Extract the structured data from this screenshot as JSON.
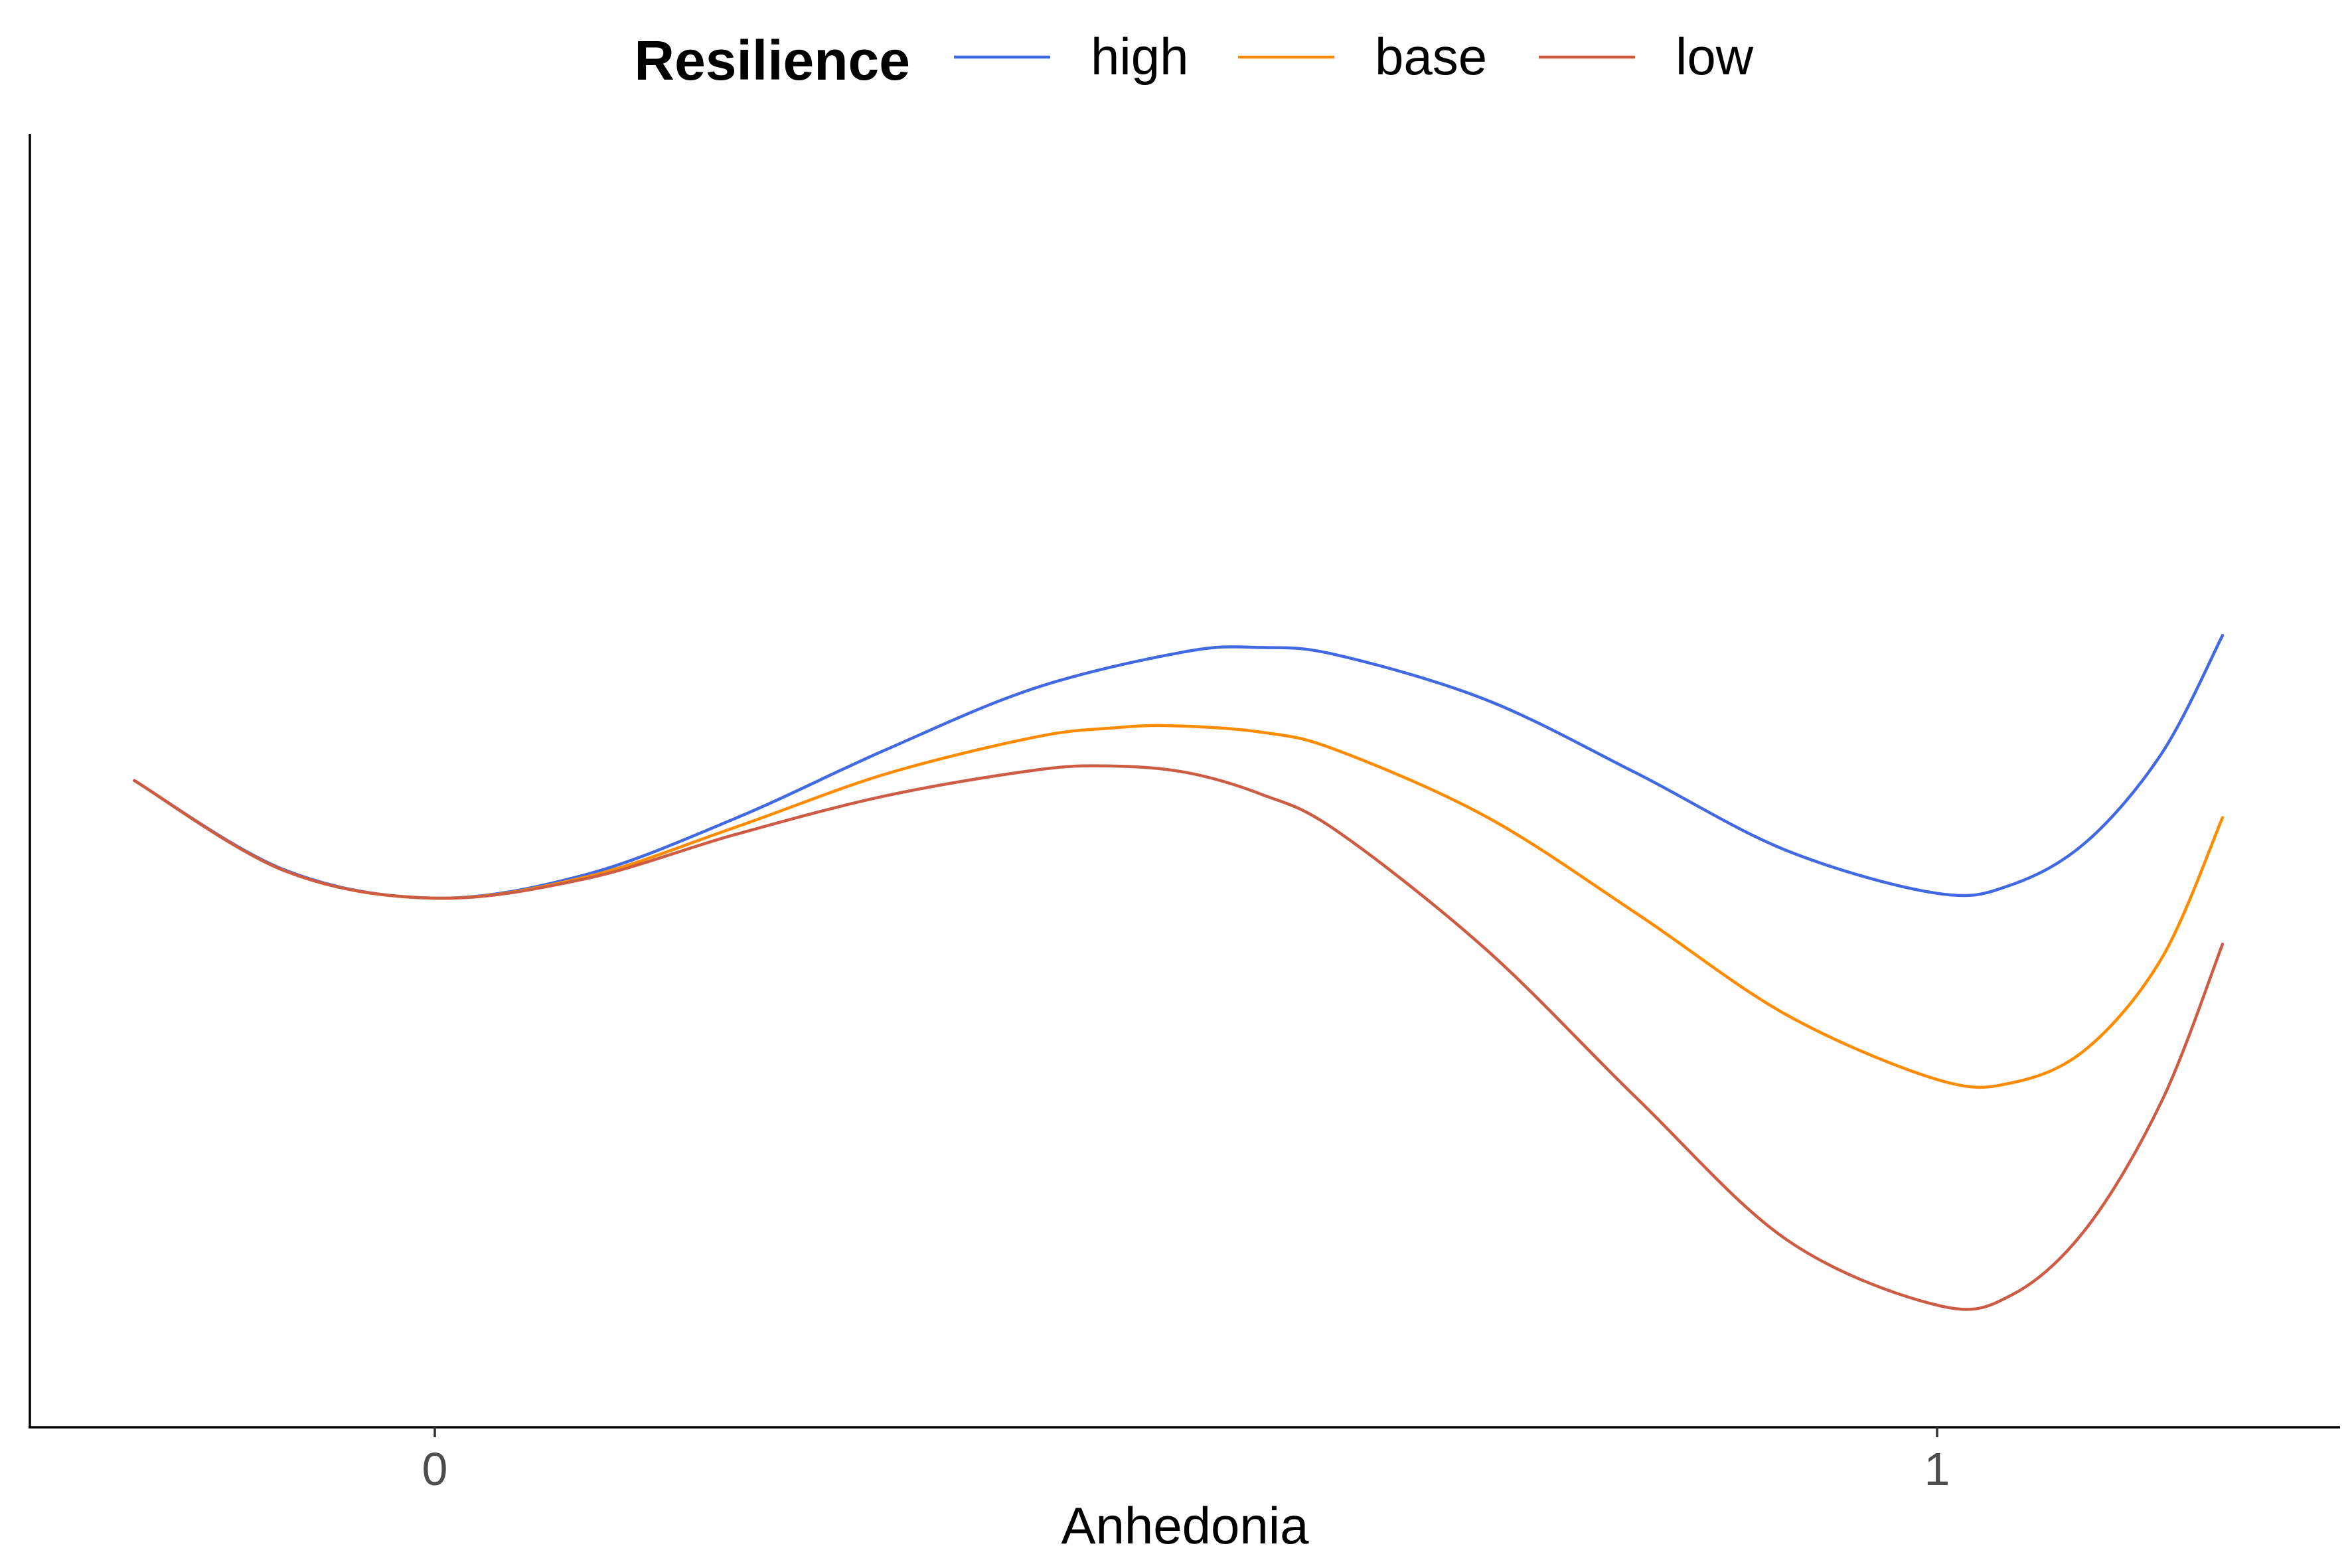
{
  "chart_data": {
    "type": "line",
    "title": "",
    "xlabel": "Anhedonia",
    "ylabel": "",
    "xlim": [
      -0.27,
      1.27
    ],
    "ylim": [
      -0.86,
      0.74
    ],
    "x_ticks": [
      0,
      1
    ],
    "x_tick_labels": [
      "0",
      "1"
    ],
    "y_ticks": [],
    "grid": false,
    "legend": {
      "title": "Resilience",
      "position": "top",
      "entries": [
        "high",
        "base",
        "low"
      ]
    },
    "series": [
      {
        "name": "high",
        "color": "#4169E1",
        "x": [
          -0.2,
          -0.1,
          0.0,
          0.1,
          0.2,
          0.3,
          0.4,
          0.5,
          0.55,
          0.6,
          0.7,
          0.8,
          0.9,
          1.0,
          1.05,
          1.1,
          1.15,
          1.19
        ],
        "y": [
          0.146,
          0.035,
          0.0,
          0.029,
          0.099,
          0.184,
          0.261,
          0.306,
          0.311,
          0.302,
          0.246,
          0.155,
          0.059,
          0.006,
          0.017,
          0.071,
          0.181,
          0.326
        ]
      },
      {
        "name": "base",
        "color": "#FF8C00",
        "x": [
          -0.2,
          -0.1,
          0.0,
          0.1,
          0.2,
          0.3,
          0.4,
          0.45,
          0.49,
          0.55,
          0.6,
          0.7,
          0.8,
          0.9,
          1.0,
          1.05,
          1.1,
          1.15,
          1.19
        ],
        "y": [
          0.146,
          0.034,
          0.0,
          0.026,
          0.088,
          0.154,
          0.2,
          0.211,
          0.214,
          0.206,
          0.184,
          0.101,
          -0.019,
          -0.145,
          -0.225,
          -0.229,
          -0.186,
          -0.073,
          0.1
        ]
      },
      {
        "name": "low",
        "color": "#CD5C45",
        "x": [
          -0.2,
          -0.1,
          0.0,
          0.1,
          0.2,
          0.3,
          0.4,
          0.45,
          0.5,
          0.55,
          0.6,
          0.7,
          0.8,
          0.9,
          1.0,
          1.05,
          1.1,
          1.15,
          1.19
        ],
        "y": [
          0.146,
          0.034,
          0.0,
          0.024,
          0.079,
          0.127,
          0.159,
          0.164,
          0.156,
          0.129,
          0.084,
          -0.064,
          -0.248,
          -0.424,
          -0.505,
          -0.492,
          -0.408,
          -0.25,
          -0.057
        ]
      }
    ]
  }
}
